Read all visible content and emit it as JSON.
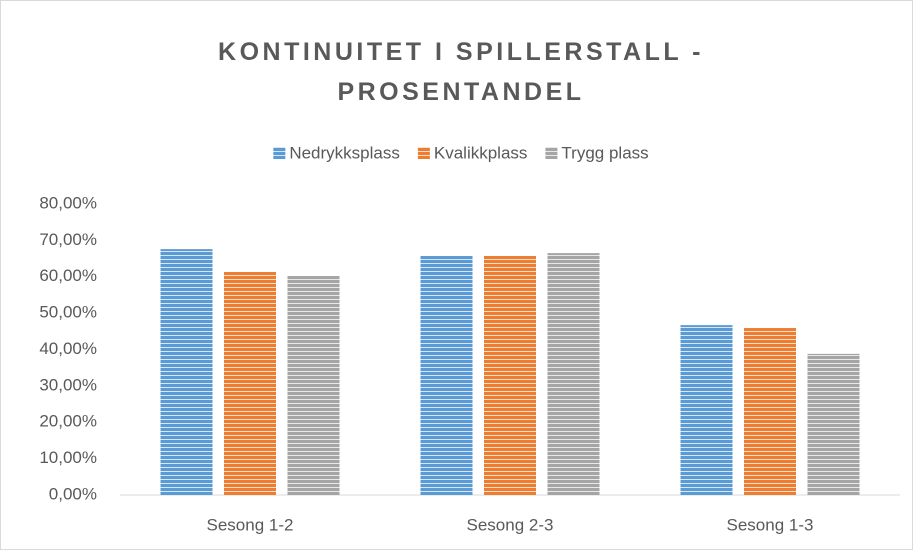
{
  "chart_data": {
    "type": "bar",
    "title": "KONTINUITET I SPILLERSTALL - PROSENTANDEL",
    "categories": [
      "Sesong 1-2",
      "Sesong 2-3",
      "Sesong 1-3"
    ],
    "series": [
      {
        "name": "Nedrykksplass",
        "color": "#5b9bd5",
        "values": [
          67.6,
          65.7,
          46.7
        ]
      },
      {
        "name": "Kvalikkplass",
        "color": "#ed7d31",
        "values": [
          61.3,
          65.7,
          45.9
        ]
      },
      {
        "name": "Trygg plass",
        "color": "#a5a5a5",
        "values": [
          60.2,
          66.5,
          38.8
        ]
      }
    ],
    "ylim": [
      0,
      80
    ],
    "yticks": [
      {
        "value": 0,
        "label": "0,00%"
      },
      {
        "value": 10,
        "label": "10,00%"
      },
      {
        "value": 20,
        "label": "20,00%"
      },
      {
        "value": 30,
        "label": "30,00%"
      },
      {
        "value": 40,
        "label": "40,00%"
      },
      {
        "value": 50,
        "label": "50,00%"
      },
      {
        "value": 60,
        "label": "60,00%"
      },
      {
        "value": 70,
        "label": "70,00%"
      },
      {
        "value": 80,
        "label": "80,00%"
      }
    ],
    "grid": false,
    "legend": "top"
  }
}
